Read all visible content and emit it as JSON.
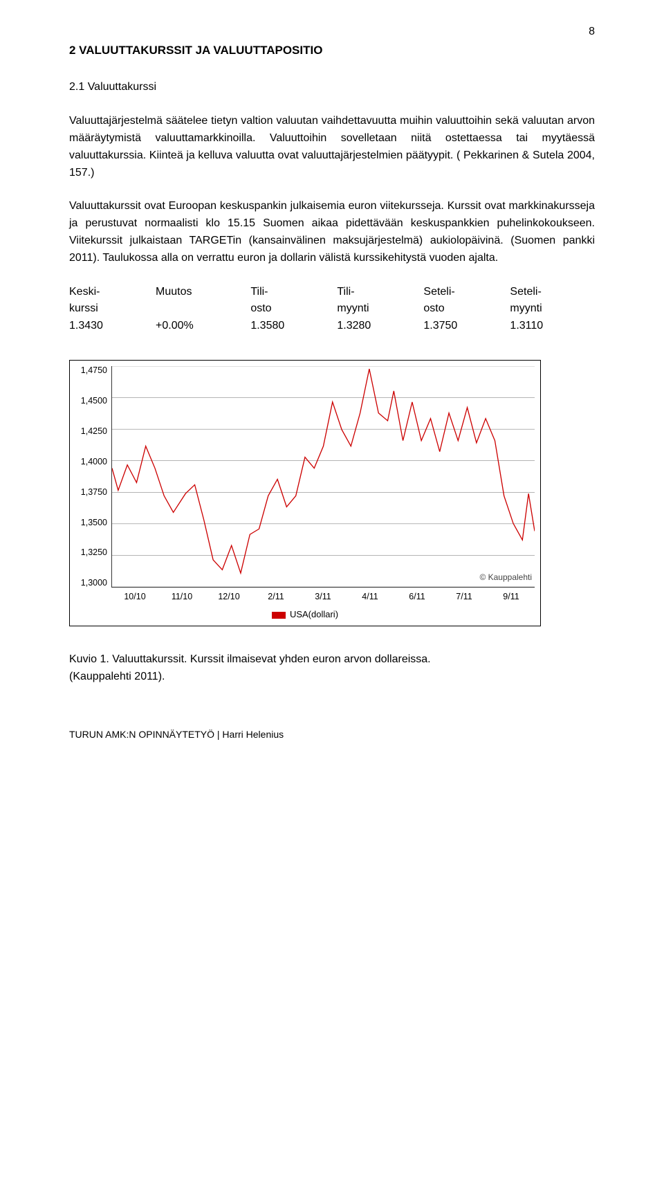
{
  "page_number": "8",
  "section_title": "2 VALUUTTAKURSSIT JA VALUUTTAPOSITIO",
  "subsection_title": "2.1 Valuuttakurssi",
  "paragraphs": {
    "p1": "Valuuttajärjestelmä säätelee tietyn valtion valuutan vaihdettavuutta muihin valuuttoihin sekä valuutan arvon määräytymistä valuuttamarkkinoilla. Valuuttoihin sovelletaan niitä ostettaessa tai myytäessä valuuttakurssia. Kiinteä ja kelluva valuutta ovat valuuttajärjestelmien päätyypit. ( Pekkarinen & Sutela 2004, 157.)",
    "p2": "Valuuttakurssit ovat Euroopan keskuspankin  julkaisemia euron viitekursseja. Kurssit ovat markkinakursseja ja perustuvat normaalisti klo 15.15 Suomen aikaa pidettävään keskuspankkien puhelinkokoukseen. Viitekurssit julkaistaan TARGETin (kansainvälinen maksujärjestelmä) aukiolopäivinä. (Suomen pankki 2011). Taulukossa alla on verrattu euron ja dollarin välistä kurssikehitystä vuoden ajalta."
  },
  "rates_table": {
    "headers": [
      "Keski-\nkurssi",
      "Muutos",
      "Tili-\nosto",
      "Tili-\nmyynti",
      "Seteli-\nosto",
      "Seteli-\nmyynti"
    ],
    "values": [
      "1.3430",
      "+0.00%",
      "1.3580",
      "1.3280",
      "1.3750",
      "1.3110"
    ]
  },
  "chart": {
    "type": "line",
    "ylim": [
      1.2875,
      1.4875
    ],
    "yticks": [
      "1,4750",
      "1,4500",
      "1,4250",
      "1,4000",
      "1,3750",
      "1,3500",
      "1,3250",
      "1,3000"
    ],
    "xticks": [
      "10/10",
      "11/10",
      "12/10",
      "2/11",
      "3/11",
      "4/11",
      "6/11",
      "7/11",
      "9/11"
    ],
    "line_color": "#cc0000",
    "grid_color": "#888888",
    "background_color": "#ffffff",
    "line_width": 1.3,
    "legend_label": "USA(dollari)",
    "legend_swatch_color": "#cc0000",
    "copyright": "© Kauppalehti",
    "series": [
      [
        0,
        1.395
      ],
      [
        2,
        1.375
      ],
      [
        5,
        1.398
      ],
      [
        8,
        1.382
      ],
      [
        11,
        1.415
      ],
      [
        14,
        1.395
      ],
      [
        17,
        1.37
      ],
      [
        20,
        1.355
      ],
      [
        24,
        1.372
      ],
      [
        27,
        1.38
      ],
      [
        30,
        1.348
      ],
      [
        33,
        1.312
      ],
      [
        36,
        1.303
      ],
      [
        39,
        1.325
      ],
      [
        42,
        1.3
      ],
      [
        45,
        1.335
      ],
      [
        48,
        1.34
      ],
      [
        51,
        1.37
      ],
      [
        54,
        1.385
      ],
      [
        57,
        1.36
      ],
      [
        60,
        1.37
      ],
      [
        63,
        1.405
      ],
      [
        66,
        1.395
      ],
      [
        69,
        1.415
      ],
      [
        72,
        1.455
      ],
      [
        75,
        1.43
      ],
      [
        78,
        1.415
      ],
      [
        81,
        1.445
      ],
      [
        84,
        1.485
      ],
      [
        87,
        1.445
      ],
      [
        90,
        1.438
      ],
      [
        92,
        1.465
      ],
      [
        95,
        1.42
      ],
      [
        98,
        1.455
      ],
      [
        101,
        1.42
      ],
      [
        104,
        1.44
      ],
      [
        107,
        1.41
      ],
      [
        110,
        1.445
      ],
      [
        113,
        1.42
      ],
      [
        116,
        1.45
      ],
      [
        119,
        1.418
      ],
      [
        122,
        1.44
      ],
      [
        125,
        1.42
      ],
      [
        128,
        1.37
      ],
      [
        131,
        1.345
      ],
      [
        134,
        1.33
      ],
      [
        136,
        1.372
      ],
      [
        138,
        1.338
      ]
    ],
    "x_max": 138
  },
  "caption_line1": "Kuvio 1. Valuuttakurssit. Kurssit ilmaisevat yhden euron arvon dollareissa.",
  "caption_line2": "(Kauppalehti 2011).",
  "footer": "TURUN AMK:N OPINNÄYTETYÖ | Harri Helenius"
}
